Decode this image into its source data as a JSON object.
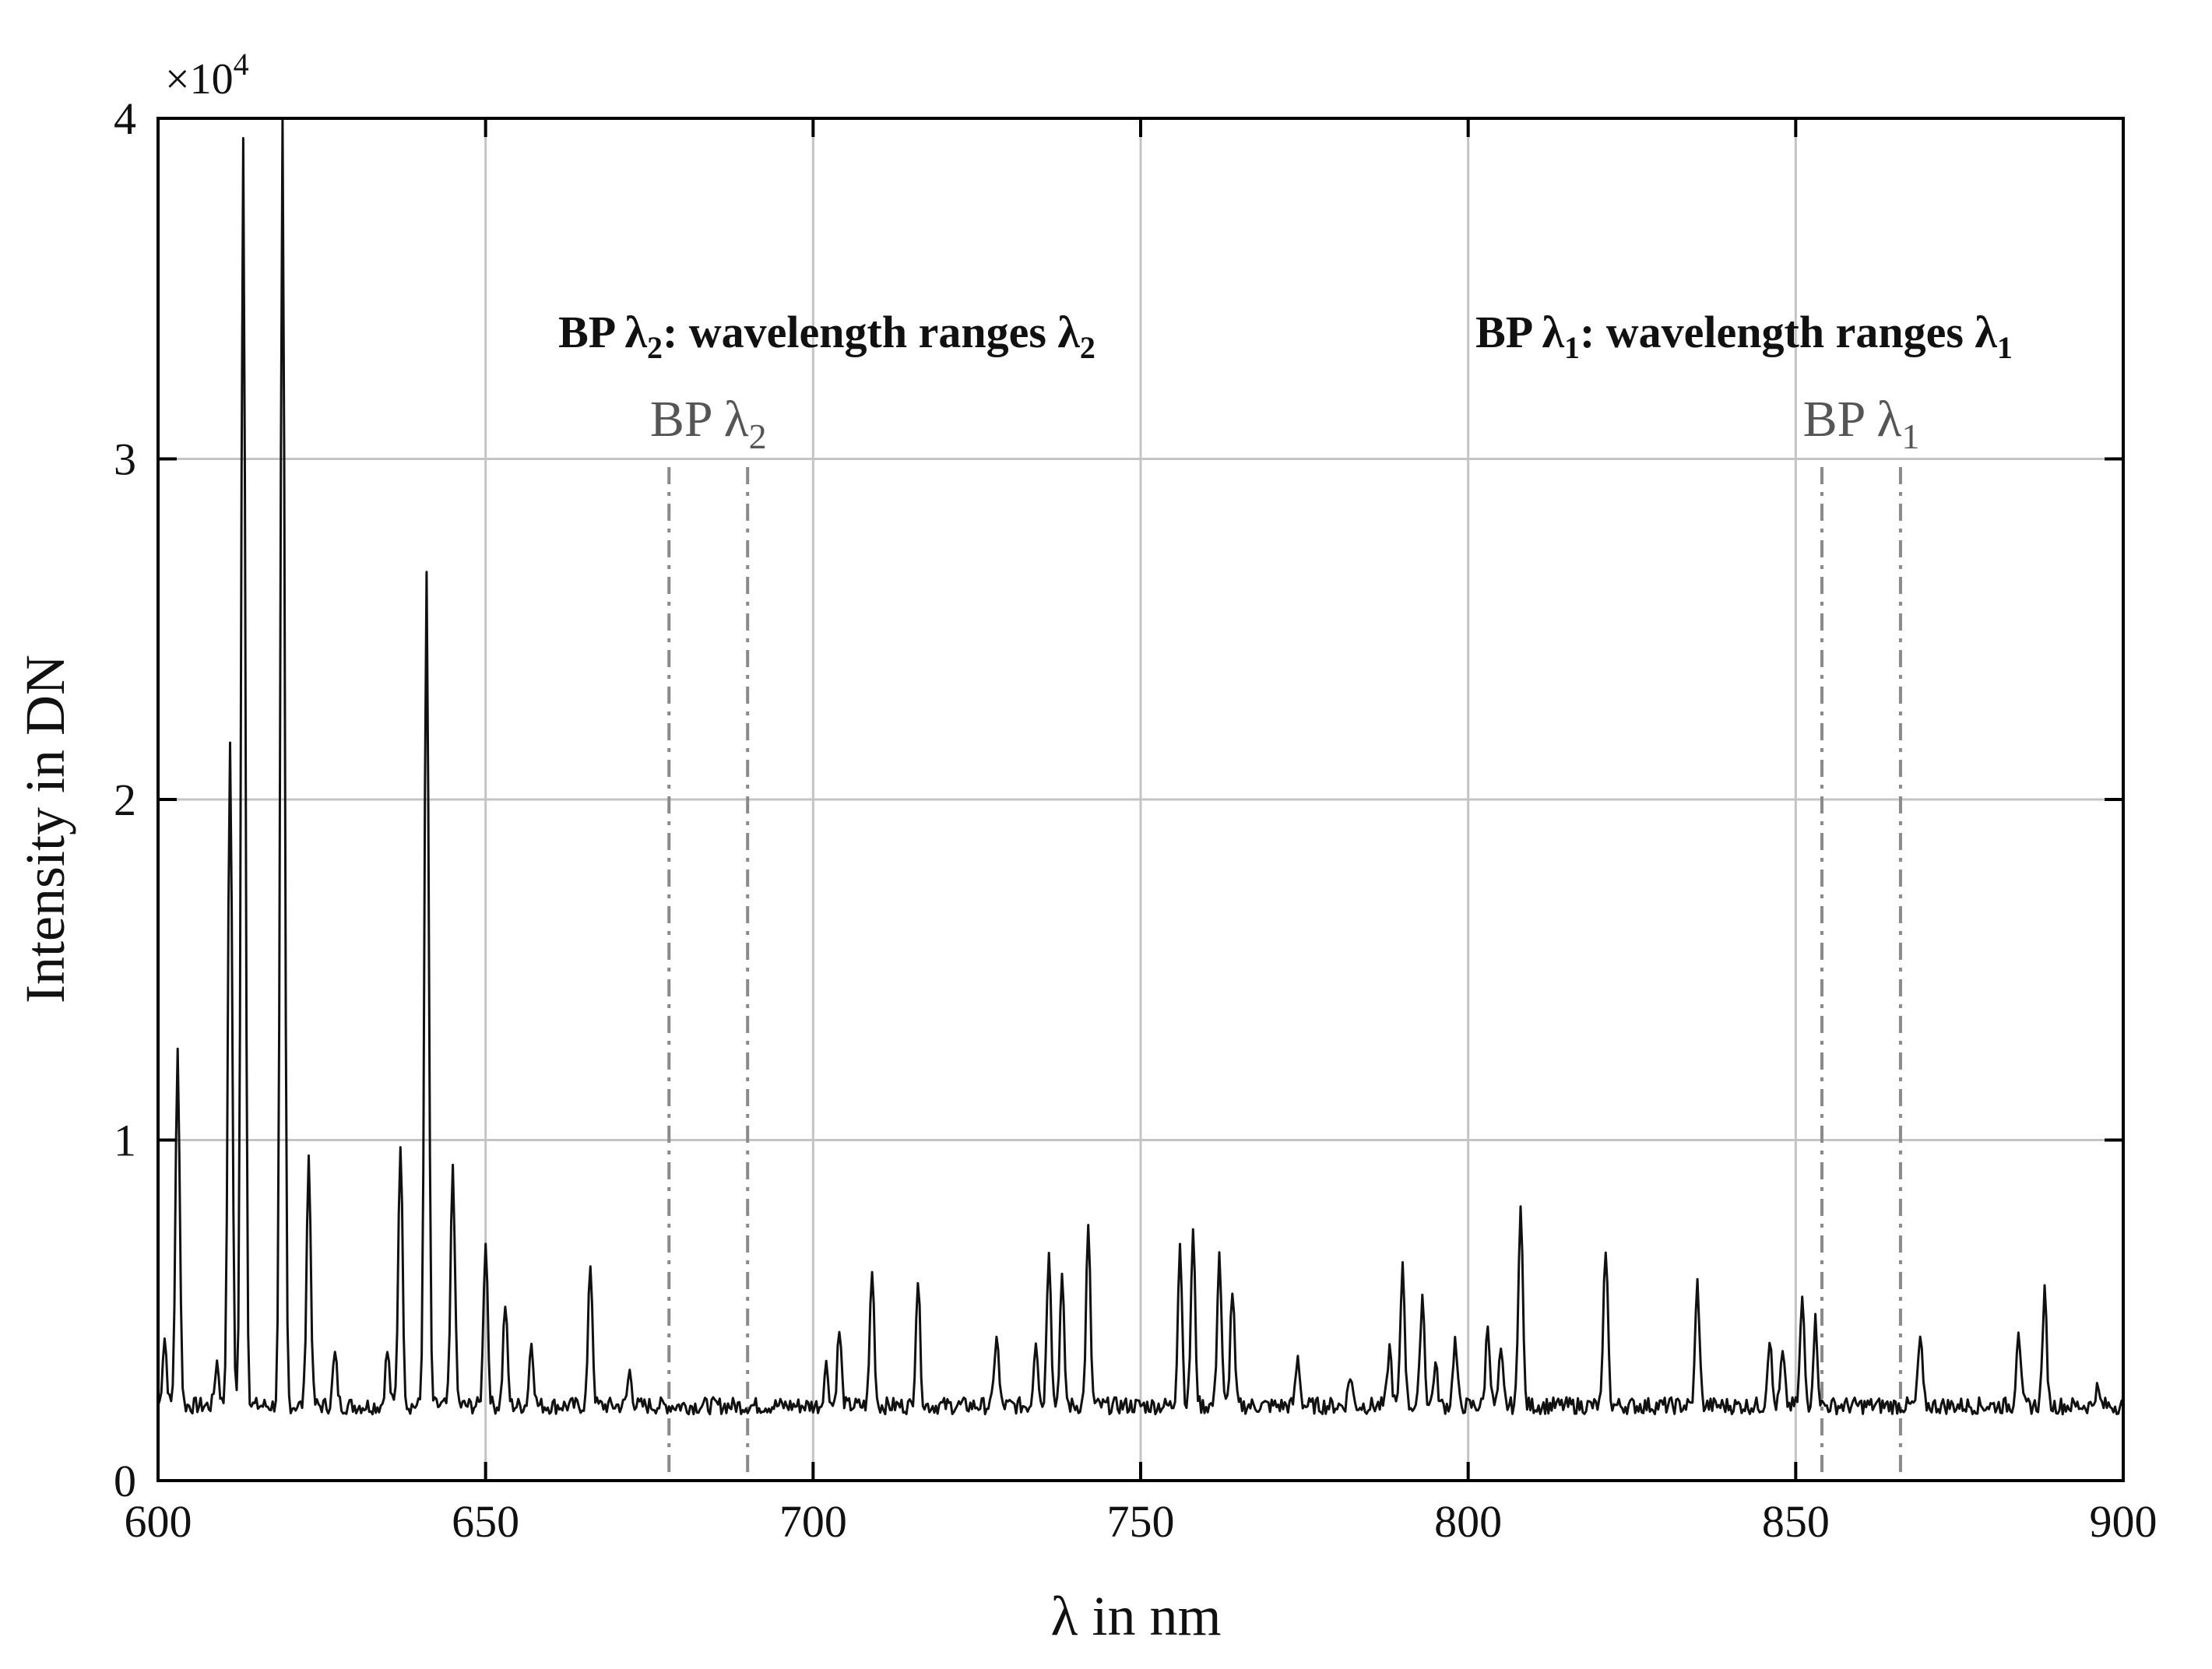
{
  "chart_data": {
    "type": "line",
    "title": "",
    "xlabel": "λ in nm",
    "ylabel": "Intensity in DN",
    "y_exponent_label": "×10",
    "y_exponent_power": "4",
    "xlim": [
      600,
      900
    ],
    "ylim": [
      0,
      40000
    ],
    "x_ticks": [
      {
        "value": 600,
        "label": "600"
      },
      {
        "value": 650,
        "label": "650"
      },
      {
        "value": 700,
        "label": "700"
      },
      {
        "value": 750,
        "label": "750"
      },
      {
        "value": 800,
        "label": "800"
      },
      {
        "value": 850,
        "label": "850"
      },
      {
        "value": 900,
        "label": "900"
      }
    ],
    "y_ticks": [
      {
        "value": 0,
        "label": "0"
      },
      {
        "value": 10000,
        "label": "1"
      },
      {
        "value": 20000,
        "label": "2"
      },
      {
        "value": 30000,
        "label": "3"
      },
      {
        "value": 40000,
        "label": "4"
      }
    ],
    "grid": true,
    "baseline": 2200,
    "peaks": [
      {
        "x": 601,
        "y": 4200
      },
      {
        "x": 603,
        "y": 12600
      },
      {
        "x": 609,
        "y": 3500
      },
      {
        "x": 611,
        "y": 21800
      },
      {
        "x": 613,
        "y": 39600
      },
      {
        "x": 619,
        "y": 40000
      },
      {
        "x": 623,
        "y": 9500
      },
      {
        "x": 627,
        "y": 3700
      },
      {
        "x": 635,
        "y": 3800
      },
      {
        "x": 637,
        "y": 10000
      },
      {
        "x": 641,
        "y": 26600
      },
      {
        "x": 645,
        "y": 9300
      },
      {
        "x": 650,
        "y": 7100
      },
      {
        "x": 653,
        "y": 5200
      },
      {
        "x": 657,
        "y": 4100
      },
      {
        "x": 666,
        "y": 6400
      },
      {
        "x": 672,
        "y": 3200
      },
      {
        "x": 702,
        "y": 3400
      },
      {
        "x": 704,
        "y": 4400
      },
      {
        "x": 709,
        "y": 6200
      },
      {
        "x": 716,
        "y": 5900
      },
      {
        "x": 728,
        "y": 4300
      },
      {
        "x": 734,
        "y": 4200
      },
      {
        "x": 736,
        "y": 6900
      },
      {
        "x": 738,
        "y": 5900
      },
      {
        "x": 742,
        "y": 7400
      },
      {
        "x": 756,
        "y": 7000
      },
      {
        "x": 758,
        "y": 7300
      },
      {
        "x": 762,
        "y": 6700
      },
      {
        "x": 764,
        "y": 5600
      },
      {
        "x": 774,
        "y": 3600
      },
      {
        "x": 782,
        "y": 3100
      },
      {
        "x": 788,
        "y": 3900
      },
      {
        "x": 790,
        "y": 6400
      },
      {
        "x": 793,
        "y": 5500
      },
      {
        "x": 795,
        "y": 3400
      },
      {
        "x": 798,
        "y": 4100
      },
      {
        "x": 803,
        "y": 4600
      },
      {
        "x": 805,
        "y": 3700
      },
      {
        "x": 808,
        "y": 8300
      },
      {
        "x": 821,
        "y": 6900
      },
      {
        "x": 835,
        "y": 5800
      },
      {
        "x": 846,
        "y": 4200
      },
      {
        "x": 848,
        "y": 3700
      },
      {
        "x": 851,
        "y": 5300
      },
      {
        "x": 853,
        "y": 4700
      },
      {
        "x": 869,
        "y": 4200
      },
      {
        "x": 884,
        "y": 4500
      },
      {
        "x": 888,
        "y": 5500
      },
      {
        "x": 896,
        "y": 2700
      }
    ],
    "annotations": [
      {
        "id": "bp2",
        "title_main": "BP λ",
        "title_sub": "2",
        "title_rest": ": wavelength ranges λ",
        "title_sub2": "2",
        "label_main": "BP λ",
        "label_sub": "2",
        "range": [
          678,
          690
        ]
      },
      {
        "id": "bp1",
        "title_main": "BP λ",
        "title_sub": "1",
        "title_rest": ": wavelength ranges λ",
        "title_sub2": "1",
        "label_main": "BP λ",
        "label_sub": "1",
        "range": [
          854,
          866
        ]
      }
    ]
  },
  "colors": {
    "line": "#111111",
    "grid": "#c4c4c4",
    "band_marker": "#8a8a8a",
    "band_label": "#555555"
  }
}
